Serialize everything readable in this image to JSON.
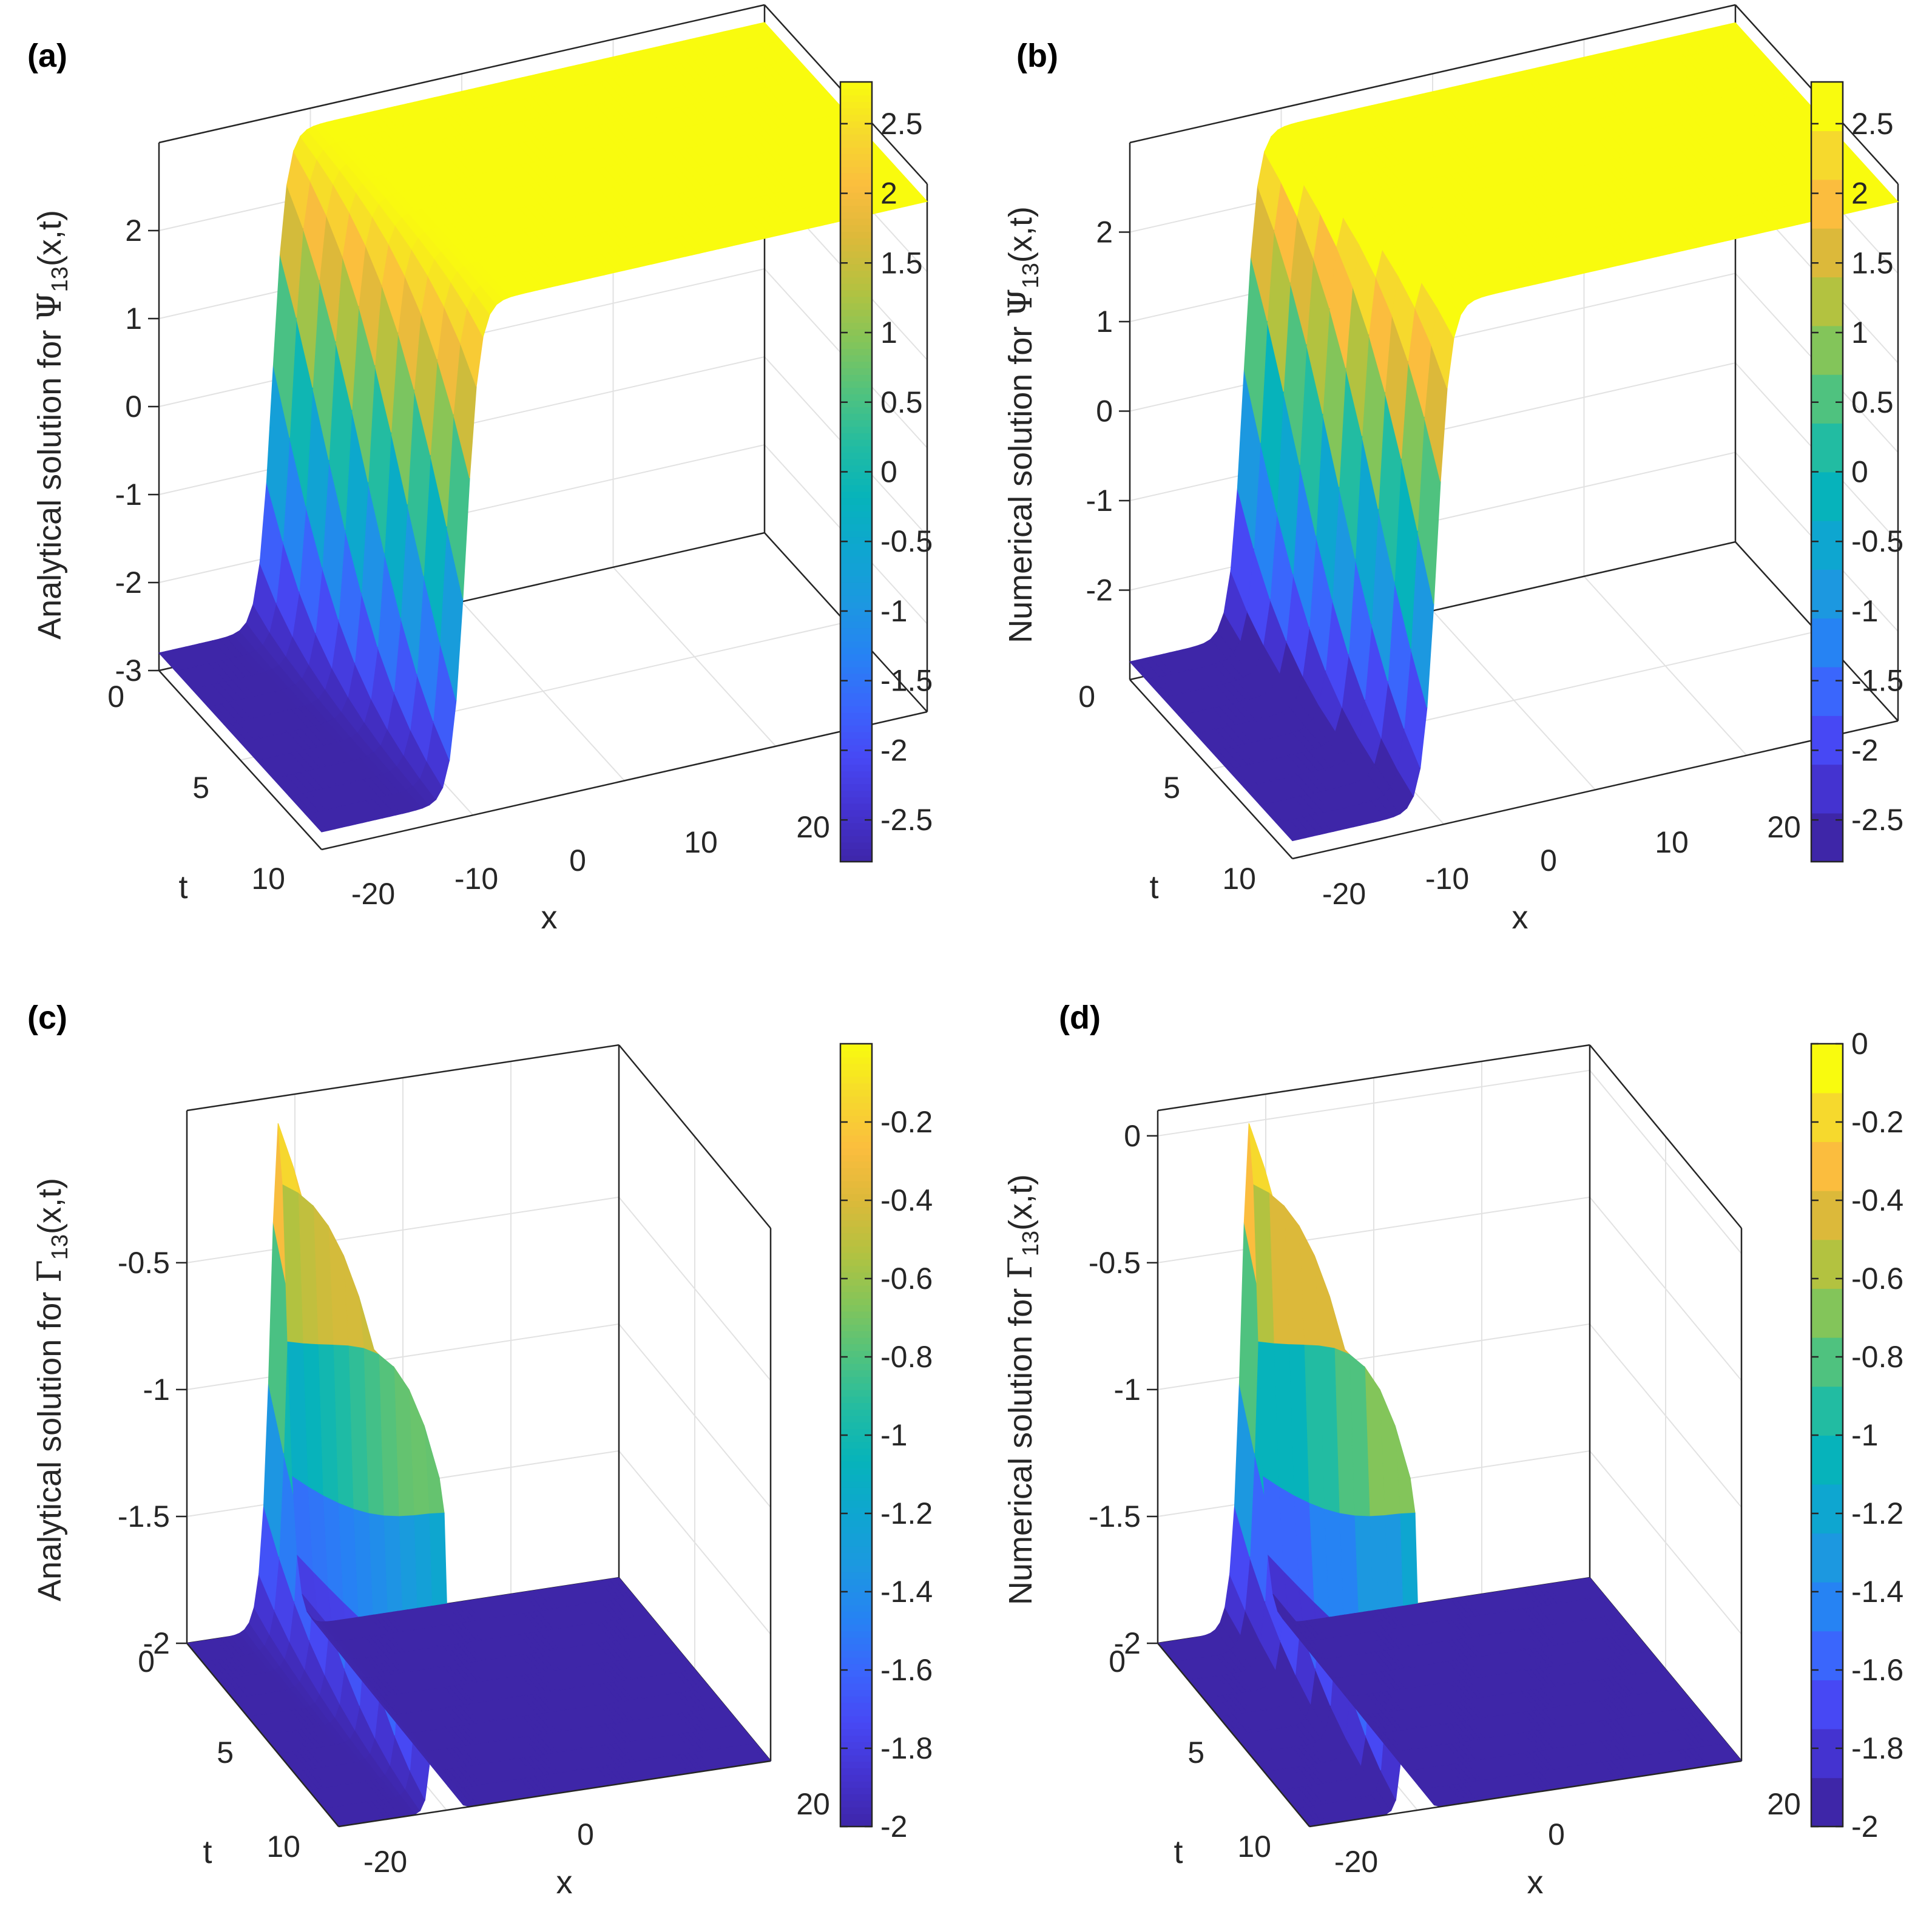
{
  "colors": {
    "parula": [
      "#3e26a8",
      "#4433d0",
      "#4748f4",
      "#3a66fc",
      "#2683f3",
      "#1c98e0",
      "#0ea6d0",
      "#06b3bb",
      "#22bca2",
      "#4fc27f",
      "#83c55a",
      "#b3c240",
      "#dcb93a",
      "#fbbd3e",
      "#f6d92d",
      "#f9fb0e"
    ],
    "axis": "#262626",
    "grid": "#e2e2e2"
  },
  "chart_data": [
    {
      "id": "a",
      "panel_label": "(a)",
      "type": "surface",
      "title": "",
      "zlabel": "Analytical solution for Ψ13(x,t)",
      "zlabel_parts": {
        "pre": "Analytical solution for ",
        "sym": "Ψ",
        "sub": "13",
        "post": "(x,t)"
      },
      "xlabel": "x",
      "ylabel": "t",
      "xlim": [
        -20,
        20
      ],
      "tlim": [
        0,
        10
      ],
      "zlim": [
        -3,
        3
      ],
      "x_ticks": [
        "-20",
        "-10",
        "0",
        "10",
        "20"
      ],
      "t_ticks": [
        "0",
        "5",
        "10"
      ],
      "z_ticks": [
        "-3",
        "-2",
        "-1",
        "0",
        "1",
        "2"
      ],
      "z_tick_values": [
        -3,
        -2,
        -1,
        0,
        1,
        2
      ],
      "colorbar": {
        "range": [
          -2.8,
          2.8
        ],
        "ticks": [
          "-2.5",
          "-2",
          "-1.5",
          "-1",
          "-0.5",
          "0",
          "0.5",
          "1",
          "1.5",
          "2",
          "2.5"
        ],
        "tick_values": [
          -2.5,
          -2,
          -1.5,
          -1,
          -0.5,
          0,
          0.5,
          1,
          1.5,
          2,
          2.5
        ],
        "discrete": false
      },
      "solution": {
        "kind": "kink",
        "low": -2.8,
        "high": 2.8,
        "front_x_at_t0": -12.5,
        "front_x_at_t10": -10.5
      }
    },
    {
      "id": "b",
      "panel_label": "(b)",
      "type": "surface",
      "title": "",
      "zlabel": "Numerical solution for Ψ13(x,t)",
      "zlabel_parts": {
        "pre": "Numerical solution for ",
        "sym": "Ψ",
        "sub": "13",
        "post": "(x,t)"
      },
      "xlabel": "x",
      "ylabel": "t",
      "xlim": [
        -20,
        20
      ],
      "tlim": [
        0,
        10
      ],
      "zlim": [
        -3,
        3
      ],
      "x_ticks": [
        "-20",
        "-10",
        "0",
        "10",
        "20"
      ],
      "t_ticks": [
        "0",
        "5",
        "10"
      ],
      "z_ticks": [
        "-2",
        "-1",
        "0",
        "1",
        "2"
      ],
      "z_tick_values": [
        -2,
        -1,
        0,
        1,
        2
      ],
      "colorbar": {
        "range": [
          -2.8,
          2.8
        ],
        "ticks": [
          "-2.5",
          "-2",
          "-1.5",
          "-1",
          "-0.5",
          "0",
          "0.5",
          "1",
          "1.5",
          "2",
          "2.5"
        ],
        "tick_values": [
          -2.5,
          -2,
          -1.5,
          -1,
          -0.5,
          0,
          0.5,
          1,
          1.5,
          2,
          2.5
        ],
        "discrete": true
      },
      "solution": {
        "kind": "kink",
        "low": -2.8,
        "high": 2.8,
        "front_x_at_t0": -12.5,
        "front_x_at_t10": -10.5
      }
    },
    {
      "id": "c",
      "panel_label": "(c)",
      "type": "surface",
      "title": "",
      "zlabel": "Analytical solution for Γ13(x,t)",
      "zlabel_parts": {
        "pre": "Analytical solution for ",
        "sym": "Γ",
        "sub": "13",
        "post": "(x,t)"
      },
      "xlabel": "x",
      "ylabel": "t",
      "xlim": [
        -20,
        20
      ],
      "tlim": [
        0,
        10
      ],
      "zlim": [
        -2,
        0.1
      ],
      "x_ticks": [
        "-20",
        "0",
        "20"
      ],
      "t_ticks": [
        "0",
        "5",
        "10"
      ],
      "z_ticks": [
        "-2",
        "-1.5",
        "-1",
        "-0.5"
      ],
      "z_tick_values": [
        -2,
        -1.5,
        -1,
        -0.5
      ],
      "colorbar": {
        "range": [
          -2,
          0
        ],
        "ticks": [
          "-0.2",
          "-0.4",
          "-0.6",
          "-0.8",
          "-1",
          "-1.2",
          "-1.4",
          "-1.6",
          "-1.8",
          "-2"
        ],
        "tick_values": [
          -0.2,
          -0.4,
          -0.6,
          -0.8,
          -1,
          -1.2,
          -1.4,
          -1.6,
          -1.8,
          -2
        ],
        "discrete": false
      },
      "solution": {
        "kind": "pulse",
        "base": -2,
        "peak": 0,
        "center_x_at_t0": -11.5,
        "center_x_at_t10": -10.5
      }
    },
    {
      "id": "d",
      "panel_label": "(d)",
      "type": "surface",
      "title": "",
      "zlabel": "Numerical solution for Γ13(x,t)",
      "zlabel_parts": {
        "pre": "Numerical solution for ",
        "sym": "Γ",
        "sub": "13",
        "post": "(x,t)"
      },
      "xlabel": "x",
      "ylabel": "t",
      "xlim": [
        -20,
        20
      ],
      "tlim": [
        0,
        10
      ],
      "zlim": [
        -2,
        0.1
      ],
      "x_ticks": [
        "-20",
        "0",
        "20"
      ],
      "t_ticks": [
        "0",
        "5",
        "10"
      ],
      "z_ticks": [
        "-2",
        "-1.5",
        "-1",
        "-0.5",
        "0"
      ],
      "z_tick_values": [
        -2,
        -1.5,
        -1,
        -0.5,
        0
      ],
      "colorbar": {
        "range": [
          -2,
          0
        ],
        "ticks": [
          "0",
          "-0.2",
          "-0.4",
          "-0.6",
          "-0.8",
          "-1",
          "-1.2",
          "-1.4",
          "-1.6",
          "-1.8",
          "-2"
        ],
        "tick_values": [
          0,
          -0.2,
          -0.4,
          -0.6,
          -0.8,
          -1,
          -1.2,
          -1.4,
          -1.6,
          -1.8,
          -2
        ],
        "discrete": true
      },
      "solution": {
        "kind": "pulse",
        "base": -2,
        "peak": 0,
        "center_x_at_t0": -11.5,
        "center_x_at_t10": -10.5
      }
    }
  ]
}
